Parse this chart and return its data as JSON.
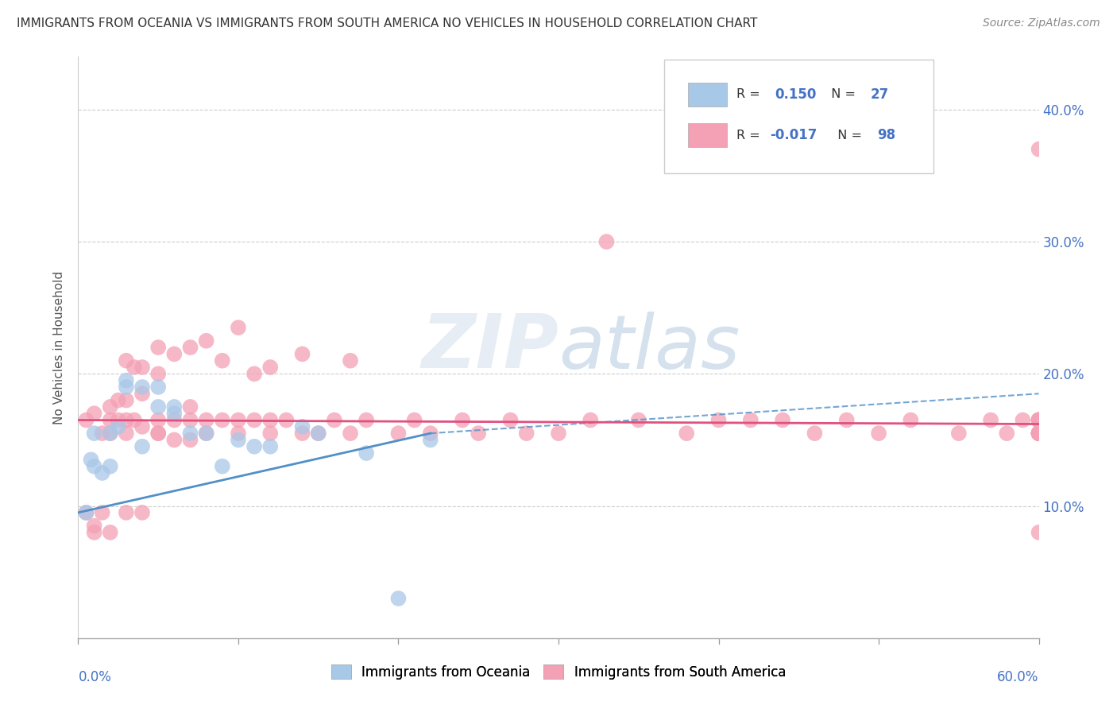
{
  "title": "IMMIGRANTS FROM OCEANIA VS IMMIGRANTS FROM SOUTH AMERICA NO VEHICLES IN HOUSEHOLD CORRELATION CHART",
  "source": "Source: ZipAtlas.com",
  "ylabel": "No Vehicles in Household",
  "xlim": [
    0.0,
    0.6
  ],
  "ylim": [
    0.0,
    0.44
  ],
  "yticks": [
    0.0,
    0.1,
    0.2,
    0.3,
    0.4
  ],
  "ytick_labels": [
    "",
    "10.0%",
    "20.0%",
    "30.0%",
    "40.0%"
  ],
  "R_oceania": 0.15,
  "N_oceania": 27,
  "R_south_america": -0.017,
  "N_south_america": 98,
  "watermark": "ZIPatlas",
  "oceania_color": "#a8c8e8",
  "south_america_color": "#f4a0b5",
  "trend_oceania_color": "#5090c8",
  "trend_south_america_color": "#e05080",
  "oceania_trend_x0": 0.0,
  "oceania_trend_y0": 0.095,
  "oceania_trend_x1": 0.22,
  "oceania_trend_y1": 0.155,
  "oceania_trend_dash_x0": 0.22,
  "oceania_trend_dash_y0": 0.155,
  "oceania_trend_dash_x1": 0.6,
  "oceania_trend_dash_y1": 0.185,
  "sa_trend_x0": 0.0,
  "sa_trend_y0": 0.165,
  "sa_trend_x1": 0.6,
  "sa_trend_y1": 0.162,
  "oceania_x": [
    0.005,
    0.008,
    0.01,
    0.01,
    0.015,
    0.02,
    0.02,
    0.025,
    0.03,
    0.03,
    0.04,
    0.04,
    0.05,
    0.05,
    0.06,
    0.06,
    0.07,
    0.08,
    0.09,
    0.1,
    0.11,
    0.12,
    0.14,
    0.15,
    0.18,
    0.2,
    0.22
  ],
  "oceania_y": [
    0.095,
    0.135,
    0.13,
    0.155,
    0.125,
    0.155,
    0.13,
    0.16,
    0.19,
    0.195,
    0.19,
    0.145,
    0.175,
    0.19,
    0.17,
    0.175,
    0.155,
    0.155,
    0.13,
    0.15,
    0.145,
    0.145,
    0.16,
    0.155,
    0.14,
    0.03,
    0.15
  ],
  "sa_x": [
    0.005,
    0.005,
    0.01,
    0.01,
    0.01,
    0.015,
    0.015,
    0.02,
    0.02,
    0.02,
    0.02,
    0.025,
    0.025,
    0.03,
    0.03,
    0.03,
    0.03,
    0.03,
    0.035,
    0.035,
    0.04,
    0.04,
    0.04,
    0.04,
    0.05,
    0.05,
    0.05,
    0.05,
    0.05,
    0.06,
    0.06,
    0.06,
    0.07,
    0.07,
    0.07,
    0.07,
    0.08,
    0.08,
    0.08,
    0.09,
    0.09,
    0.1,
    0.1,
    0.1,
    0.11,
    0.11,
    0.12,
    0.12,
    0.12,
    0.13,
    0.14,
    0.14,
    0.15,
    0.16,
    0.17,
    0.17,
    0.18,
    0.2,
    0.21,
    0.22,
    0.24,
    0.25,
    0.27,
    0.28,
    0.3,
    0.32,
    0.33,
    0.35,
    0.38,
    0.4,
    0.42,
    0.44,
    0.46,
    0.48,
    0.5,
    0.52,
    0.55,
    0.57,
    0.58,
    0.59,
    0.6,
    0.6,
    0.6,
    0.6,
    0.6,
    0.6,
    0.6,
    0.6,
    0.6,
    0.6,
    0.6,
    0.6,
    0.6,
    0.6,
    0.6,
    0.6,
    0.6,
    0.6
  ],
  "sa_y": [
    0.095,
    0.165,
    0.08,
    0.17,
    0.085,
    0.095,
    0.155,
    0.08,
    0.165,
    0.155,
    0.175,
    0.165,
    0.18,
    0.095,
    0.155,
    0.165,
    0.18,
    0.21,
    0.165,
    0.205,
    0.095,
    0.16,
    0.185,
    0.205,
    0.155,
    0.165,
    0.2,
    0.155,
    0.22,
    0.15,
    0.165,
    0.215,
    0.15,
    0.165,
    0.22,
    0.175,
    0.155,
    0.165,
    0.225,
    0.165,
    0.21,
    0.155,
    0.165,
    0.235,
    0.165,
    0.2,
    0.155,
    0.165,
    0.205,
    0.165,
    0.155,
    0.215,
    0.155,
    0.165,
    0.155,
    0.21,
    0.165,
    0.155,
    0.165,
    0.155,
    0.165,
    0.155,
    0.165,
    0.155,
    0.155,
    0.165,
    0.3,
    0.165,
    0.155,
    0.165,
    0.165,
    0.165,
    0.155,
    0.165,
    0.155,
    0.165,
    0.155,
    0.165,
    0.155,
    0.165,
    0.37,
    0.165,
    0.155,
    0.165,
    0.155,
    0.165,
    0.155,
    0.165,
    0.155,
    0.165,
    0.155,
    0.165,
    0.155,
    0.165,
    0.155,
    0.165,
    0.155,
    0.08
  ]
}
